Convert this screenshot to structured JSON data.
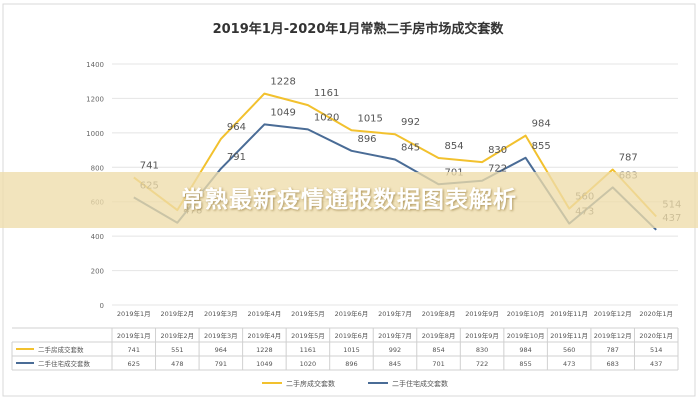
{
  "overlay": {
    "caption": "常熟最新疫情通报数据图表解析"
  },
  "chart_data": {
    "type": "line",
    "title": "2019年1月-2020年1月常熟二手房市场成交套数",
    "categories": [
      "2019年1月",
      "2019年2月",
      "2019年3月",
      "2019年4月",
      "2019年5月",
      "2019年6月",
      "2019年7月",
      "2019年8月",
      "2019年9月",
      "2019年10月",
      "2019年11月",
      "2019年12月",
      "2020年1月"
    ],
    "series": [
      {
        "name": "二手房成交套数",
        "values": [
          741,
          551,
          964,
          1228,
          1161,
          1015,
          992,
          854,
          830,
          984,
          560,
          787,
          514
        ],
        "color": "#f2c12e"
      },
      {
        "name": "二手住宅成交套数",
        "values": [
          625,
          478,
          791,
          1049,
          1020,
          896,
          845,
          701,
          722,
          855,
          473,
          683,
          437
        ],
        "color": "#4a6c96"
      }
    ],
    "ylim": [
      0,
      1400
    ],
    "yticks": [
      "0",
      "200",
      "400",
      "600",
      "800",
      "1000",
      "1200",
      "1400"
    ],
    "grid": true,
    "legend": "bottom",
    "data_table": true
  }
}
